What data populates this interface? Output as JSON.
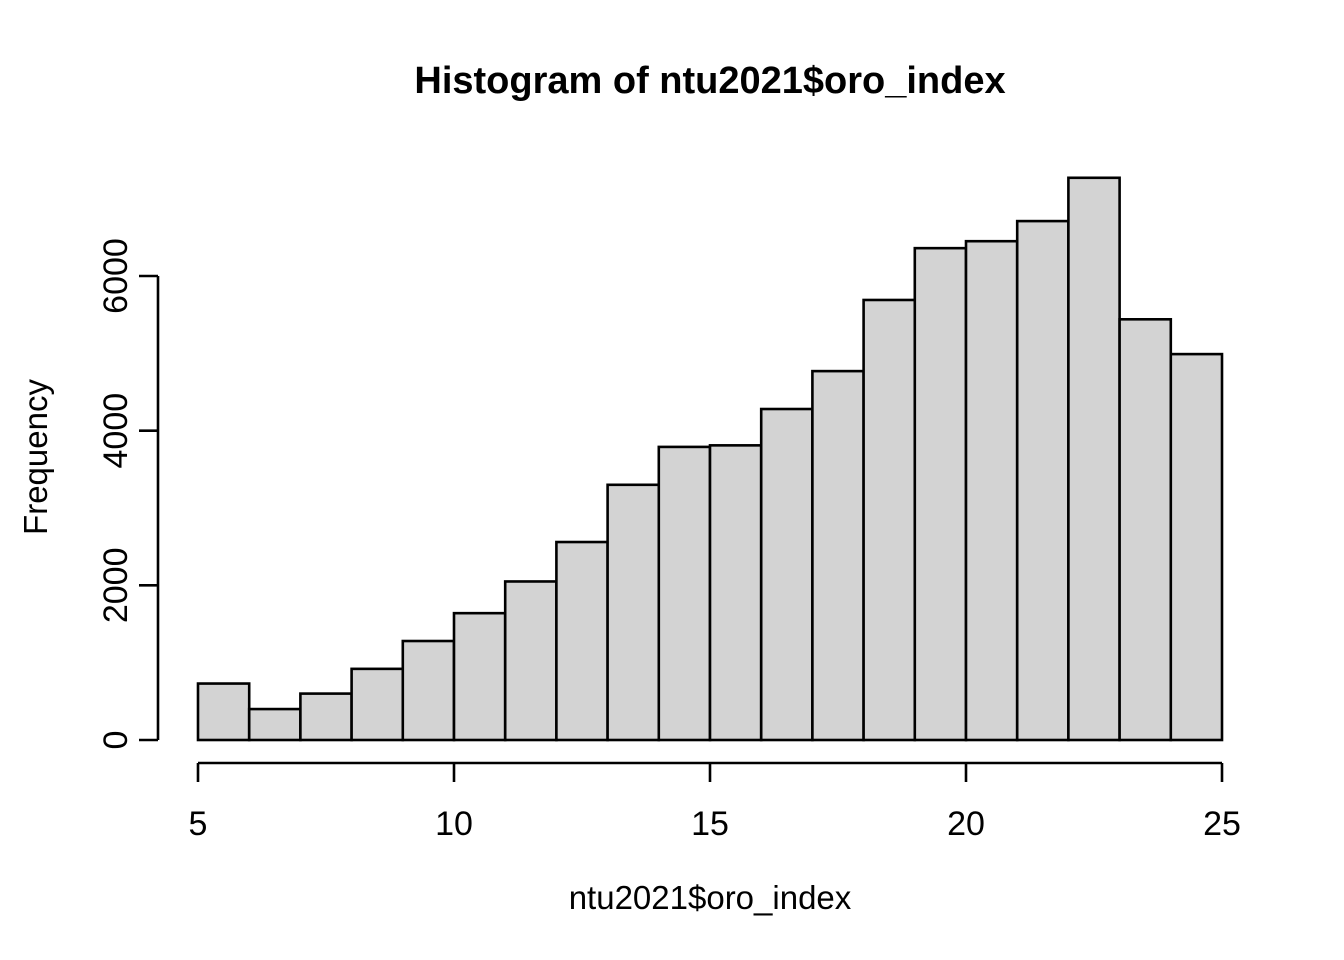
{
  "figure": {
    "background": "#ffffff"
  },
  "chart_data": {
    "type": "bar",
    "subtype": "histogram",
    "title": "Histogram of ntu2021$oro_index",
    "xlabel": "ntu2021$oro_index",
    "ylabel": "Frequency",
    "bin_edges": [
      5,
      6,
      7,
      8,
      9,
      10,
      11,
      12,
      13,
      14,
      15,
      16,
      17,
      18,
      19,
      20,
      21,
      22,
      23,
      24,
      25
    ],
    "counts": [
      730,
      400,
      600,
      920,
      1280,
      1640,
      2050,
      2560,
      3300,
      3790,
      3810,
      4280,
      4770,
      5690,
      6360,
      6450,
      6710,
      7270,
      5440,
      4990
    ],
    "x_ticks": [
      "5",
      "10",
      "15",
      "20",
      "25"
    ],
    "y_ticks": [
      "0",
      "2000",
      "4000",
      "6000"
    ],
    "xlim": [
      5,
      25
    ],
    "ylim": [
      0,
      7500
    ],
    "grid": false,
    "legend": null,
    "colors": {
      "bar_fill": "#d3d3d3",
      "bar_stroke": "#000000",
      "axis": "#000000",
      "text": "#000000",
      "background": "#ffffff"
    }
  }
}
